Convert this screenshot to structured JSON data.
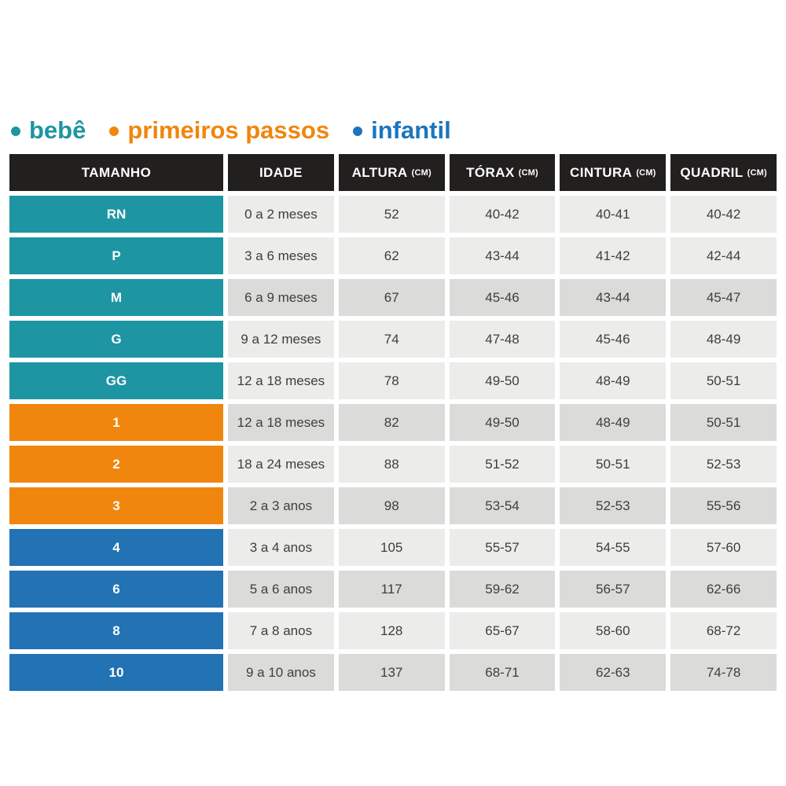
{
  "legend": {
    "items": [
      {
        "key": "bebe",
        "label": "bebê",
        "color": "#1E95A2"
      },
      {
        "key": "primeiros_passos",
        "label": "primeiros passos",
        "color": "#F0860D"
      },
      {
        "key": "infantil",
        "label": "infantil",
        "color": "#1C75BC"
      }
    ]
  },
  "colors": {
    "page_bg": "#FFFFFF",
    "header_bg": "#221F1F",
    "header_text": "#FFFFFF",
    "row_light": "#ECECEA",
    "row_dark": "#DBDBD9",
    "cell_text": "#3E3E3D",
    "bebe": "#1E95A2",
    "primeiros_passos": "#F0860D",
    "infantil": "#2272B4"
  },
  "table": {
    "headers": [
      {
        "id": "tamanho",
        "label": "TAMANHO",
        "unit": ""
      },
      {
        "id": "idade",
        "label": "IDADE",
        "unit": ""
      },
      {
        "id": "altura",
        "label": "ALTURA",
        "unit": "(CM)"
      },
      {
        "id": "torax",
        "label": "TÓRAX",
        "unit": "(CM)"
      },
      {
        "id": "cintura",
        "label": "CINTURA",
        "unit": "(CM)"
      },
      {
        "id": "quadril",
        "label": "QUADRIL",
        "unit": "(CM)"
      }
    ],
    "rows": [
      {
        "size": "RN",
        "idade": "0 a 2 meses",
        "altura": "52",
        "torax": "40-42",
        "cintura": "40-41",
        "quadril": "40-42",
        "category": "bebe",
        "shade": "light"
      },
      {
        "size": "P",
        "idade": "3 a 6 meses",
        "altura": "62",
        "torax": "43-44",
        "cintura": "41-42",
        "quadril": "42-44",
        "category": "bebe",
        "shade": "light"
      },
      {
        "size": "M",
        "idade": "6 a 9 meses",
        "altura": "67",
        "torax": "45-46",
        "cintura": "43-44",
        "quadril": "45-47",
        "category": "bebe",
        "shade": "dark"
      },
      {
        "size": "G",
        "idade": "9 a 12 meses",
        "altura": "74",
        "torax": "47-48",
        "cintura": "45-46",
        "quadril": "48-49",
        "category": "bebe",
        "shade": "light"
      },
      {
        "size": "GG",
        "idade": "12 a 18 meses",
        "altura": "78",
        "torax": "49-50",
        "cintura": "48-49",
        "quadril": "50-51",
        "category": "bebe",
        "shade": "light"
      },
      {
        "size": "1",
        "idade": "12 a 18 meses",
        "altura": "82",
        "torax": "49-50",
        "cintura": "48-49",
        "quadril": "50-51",
        "category": "primeiros_passos",
        "shade": "dark"
      },
      {
        "size": "2",
        "idade": "18 a 24 meses",
        "altura": "88",
        "torax": "51-52",
        "cintura": "50-51",
        "quadril": "52-53",
        "category": "primeiros_passos",
        "shade": "light"
      },
      {
        "size": "3",
        "idade": "2 a 3 anos",
        "altura": "98",
        "torax": "53-54",
        "cintura": "52-53",
        "quadril": "55-56",
        "category": "primeiros_passos",
        "shade": "dark"
      },
      {
        "size": "4",
        "idade": "3 a 4 anos",
        "altura": "105",
        "torax": "55-57",
        "cintura": "54-55",
        "quadril": "57-60",
        "category": "infantil",
        "shade": "light"
      },
      {
        "size": "6",
        "idade": "5 a 6 anos",
        "altura": "117",
        "torax": "59-62",
        "cintura": "56-57",
        "quadril": "62-66",
        "category": "infantil",
        "shade": "dark"
      },
      {
        "size": "8",
        "idade": "7 a 8 anos",
        "altura": "128",
        "torax": "65-67",
        "cintura": "58-60",
        "quadril": "68-72",
        "category": "infantil",
        "shade": "light"
      },
      {
        "size": "10",
        "idade": "9 a 10 anos",
        "altura": "137",
        "torax": "68-71",
        "cintura": "62-63",
        "quadril": "74-78",
        "category": "infantil",
        "shade": "dark"
      }
    ]
  },
  "chart_data": {
    "type": "table",
    "title": "",
    "legend": [
      "bebê",
      "primeiros passos",
      "infantil"
    ],
    "columns": [
      "TAMANHO",
      "IDADE",
      "ALTURA (CM)",
      "TÓRAX (CM)",
      "CINTURA (CM)",
      "QUADRIL (CM)"
    ],
    "rows": [
      [
        "RN",
        "0 a 2 meses",
        "52",
        "40-42",
        "40-41",
        "40-42"
      ],
      [
        "P",
        "3 a 6 meses",
        "62",
        "43-44",
        "41-42",
        "42-44"
      ],
      [
        "M",
        "6 a 9 meses",
        "67",
        "45-46",
        "43-44",
        "45-47"
      ],
      [
        "G",
        "9 a 12 meses",
        "74",
        "47-48",
        "45-46",
        "48-49"
      ],
      [
        "GG",
        "12 a 18 meses",
        "78",
        "49-50",
        "48-49",
        "50-51"
      ],
      [
        "1",
        "12 a 18 meses",
        "82",
        "49-50",
        "48-49",
        "50-51"
      ],
      [
        "2",
        "18 a 24 meses",
        "88",
        "51-52",
        "50-51",
        "52-53"
      ],
      [
        "3",
        "2 a 3 anos",
        "98",
        "53-54",
        "52-53",
        "55-56"
      ],
      [
        "4",
        "3 a 4 anos",
        "105",
        "55-57",
        "54-55",
        "57-60"
      ],
      [
        "6",
        "5 a 6 anos",
        "117",
        "59-62",
        "56-57",
        "62-66"
      ],
      [
        "8",
        "7 a 8 anos",
        "128",
        "65-67",
        "58-60",
        "68-72"
      ],
      [
        "10",
        "9 a 10 anos",
        "137",
        "68-71",
        "62-63",
        "74-78"
      ]
    ],
    "row_groups": [
      {
        "legend_label": "bebê",
        "rows": [
          "RN",
          "P",
          "M",
          "G",
          "GG"
        ]
      },
      {
        "legend_label": "primeiros passos",
        "rows": [
          "1",
          "2",
          "3"
        ]
      },
      {
        "legend_label": "infantil",
        "rows": [
          "4",
          "6",
          "8",
          "10"
        ]
      }
    ]
  }
}
